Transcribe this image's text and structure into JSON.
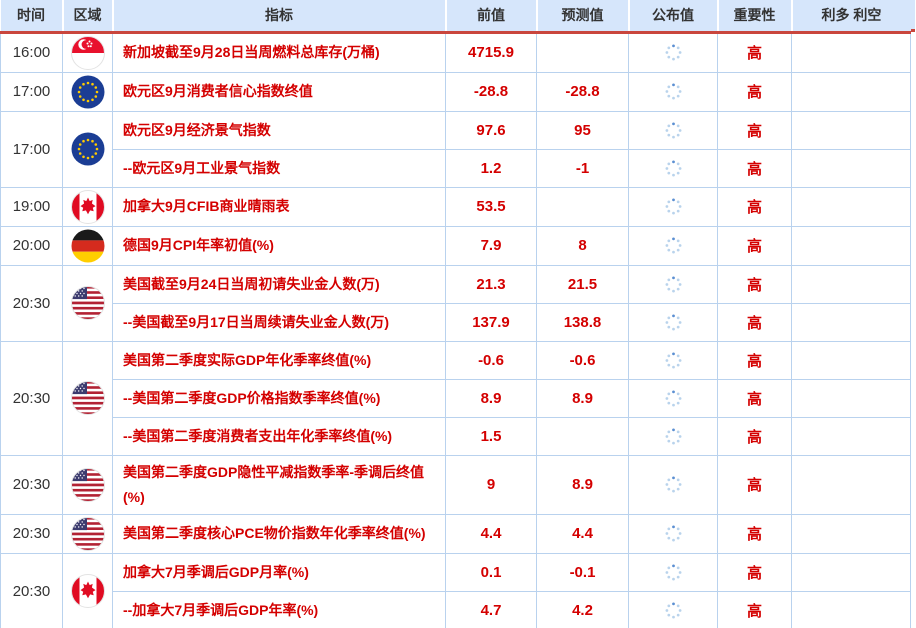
{
  "colors": {
    "header_bg": "#d6e6fb",
    "header_text": "#333333",
    "red_line": "#c9463d",
    "border_blue": "#b9d2ee",
    "text_red": "#d40000",
    "time_text": "#333333",
    "spinner_dot": "#b9d3ec",
    "spinner_dot_active": "#5b8fd2"
  },
  "icons": {
    "published_pending": "loading-spinner-icon",
    "region_flags": {
      "singapore": "singapore-flag-icon",
      "eu": "eu-flag-icon",
      "canada": "canada-flag-icon",
      "germany": "germany-flag-icon",
      "usa": "usa-flag-icon"
    }
  },
  "table": {
    "columns": [
      {
        "key": "time",
        "label": "时间"
      },
      {
        "key": "region",
        "label": "区域"
      },
      {
        "key": "indicator",
        "label": "指标"
      },
      {
        "key": "previous",
        "label": "前值"
      },
      {
        "key": "forecast",
        "label": "预测值"
      },
      {
        "key": "published",
        "label": "公布值"
      },
      {
        "key": "importance",
        "label": "重要性"
      },
      {
        "key": "effect",
        "label": "利多 利空"
      }
    ],
    "groups": [
      {
        "time": "16:00",
        "region": "singapore",
        "rows": [
          {
            "indicator": "新加坡截至9月28日当周燃料总库存(万桶)",
            "previous": "4715.9",
            "forecast": "",
            "published": "",
            "importance": "高",
            "effect": ""
          }
        ]
      },
      {
        "time": "17:00",
        "region": "eu",
        "rows": [
          {
            "indicator": "欧元区9月消费者信心指数终值",
            "previous": "-28.8",
            "forecast": "-28.8",
            "published": "",
            "importance": "高",
            "effect": ""
          }
        ]
      },
      {
        "time": "17:00",
        "region": "eu",
        "rows": [
          {
            "indicator": "欧元区9月经济景气指数",
            "previous": "97.6",
            "forecast": "95",
            "published": "",
            "importance": "高",
            "effect": ""
          },
          {
            "indicator": "--欧元区9月工业景气指数",
            "previous": "1.2",
            "forecast": "-1",
            "published": "",
            "importance": "高",
            "effect": ""
          }
        ]
      },
      {
        "time": "19:00",
        "region": "canada",
        "rows": [
          {
            "indicator": "加拿大9月CFIB商业晴雨表",
            "previous": "53.5",
            "forecast": "",
            "published": "",
            "importance": "高",
            "effect": ""
          }
        ]
      },
      {
        "time": "20:00",
        "region": "germany",
        "rows": [
          {
            "indicator": "德国9月CPI年率初值(%)",
            "previous": "7.9",
            "forecast": "8",
            "published": "",
            "importance": "高",
            "effect": ""
          }
        ]
      },
      {
        "time": "20:30",
        "region": "usa",
        "rows": [
          {
            "indicator": "美国截至9月24日当周初请失业金人数(万)",
            "previous": "21.3",
            "forecast": "21.5",
            "published": "",
            "importance": "高",
            "effect": ""
          },
          {
            "indicator": "--美国截至9月17日当周续请失业金人数(万)",
            "previous": "137.9",
            "forecast": "138.8",
            "published": "",
            "importance": "高",
            "effect": ""
          }
        ]
      },
      {
        "time": "20:30",
        "region": "usa",
        "rows": [
          {
            "indicator": "美国第二季度实际GDP年化季率终值(%)",
            "previous": "-0.6",
            "forecast": "-0.6",
            "published": "",
            "importance": "高",
            "effect": ""
          },
          {
            "indicator": "--美国第二季度GDP价格指数季率终值(%)",
            "previous": "8.9",
            "forecast": "8.9",
            "published": "",
            "importance": "高",
            "effect": ""
          },
          {
            "indicator": "--美国第二季度消费者支出年化季率终值(%)",
            "previous": "1.5",
            "forecast": "",
            "published": "",
            "importance": "高",
            "effect": ""
          }
        ]
      },
      {
        "time": "20:30",
        "region": "usa",
        "rows": [
          {
            "indicator": "美国第二季度GDP隐性平减指数季率-季调后终值(%)",
            "previous": "9",
            "forecast": "8.9",
            "published": "",
            "importance": "高",
            "effect": ""
          }
        ]
      },
      {
        "time": "20:30",
        "region": "usa",
        "rows": [
          {
            "indicator": "美国第二季度核心PCE物价指数年化季率终值(%)",
            "previous": "4.4",
            "forecast": "4.4",
            "published": "",
            "importance": "高",
            "effect": ""
          }
        ]
      },
      {
        "time": "20:30",
        "region": "canada",
        "rows": [
          {
            "indicator": "加拿大7月季调后GDP月率(%)",
            "previous": "0.1",
            "forecast": "-0.1",
            "published": "",
            "importance": "高",
            "effect": ""
          },
          {
            "indicator": "--加拿大7月季调后GDP年率(%)",
            "previous": "4.7",
            "forecast": "4.2",
            "published": "",
            "importance": "高",
            "effect": ""
          }
        ]
      }
    ]
  }
}
